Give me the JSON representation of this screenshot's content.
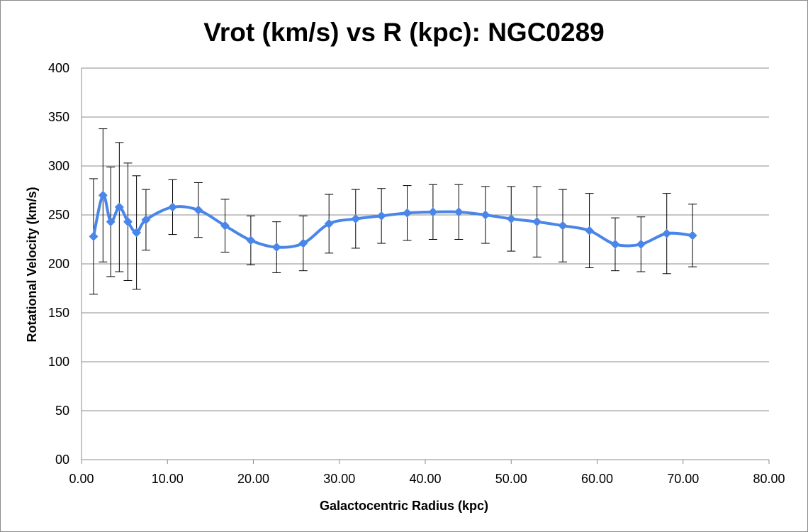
{
  "chart_data": {
    "type": "line",
    "title": "Vrot (km/s) vs R (kpc): NGC0289",
    "xlabel": "Galactocentric Radius (kpc)",
    "ylabel": "Rotational Velocity (km/s)",
    "xlim": [
      0,
      80
    ],
    "ylim": [
      0,
      400
    ],
    "x_ticks": [
      "0.00",
      "10.00",
      "20.00",
      "30.00",
      "40.00",
      "50.00",
      "60.00",
      "70.00",
      "80.00"
    ],
    "y_ticks": [
      "00",
      "50",
      "100",
      "150",
      "200",
      "250",
      "300",
      "350",
      "400"
    ],
    "grid": "horizontal",
    "legend": "none",
    "smooth": true,
    "colors": {
      "series": "#4a86e8",
      "error_bars": "#000000",
      "grid": "#8c8c8c"
    },
    "series": [
      {
        "x": [
          1.4,
          2.5,
          3.4,
          4.4,
          5.4,
          6.4,
          7.5,
          10.6,
          13.6,
          16.7,
          19.7,
          22.7,
          25.8,
          28.8,
          31.9,
          34.9,
          37.9,
          40.9,
          43.9,
          47.0,
          50.0,
          53.0,
          56.0,
          59.1,
          62.1,
          65.1,
          68.1,
          71.1
        ],
        "y": [
          228,
          270,
          243,
          258,
          243,
          232,
          245,
          258,
          255,
          239,
          224,
          217,
          221,
          241,
          246,
          249,
          252,
          253,
          253,
          250,
          246,
          243,
          239,
          234,
          220,
          220,
          231,
          229
        ],
        "error": [
          59,
          68,
          56,
          66,
          60,
          58,
          31,
          28,
          28,
          27,
          25,
          26,
          28,
          30,
          30,
          28,
          28,
          28,
          28,
          29,
          33,
          36,
          37,
          38,
          27,
          28,
          41,
          32
        ]
      }
    ]
  }
}
